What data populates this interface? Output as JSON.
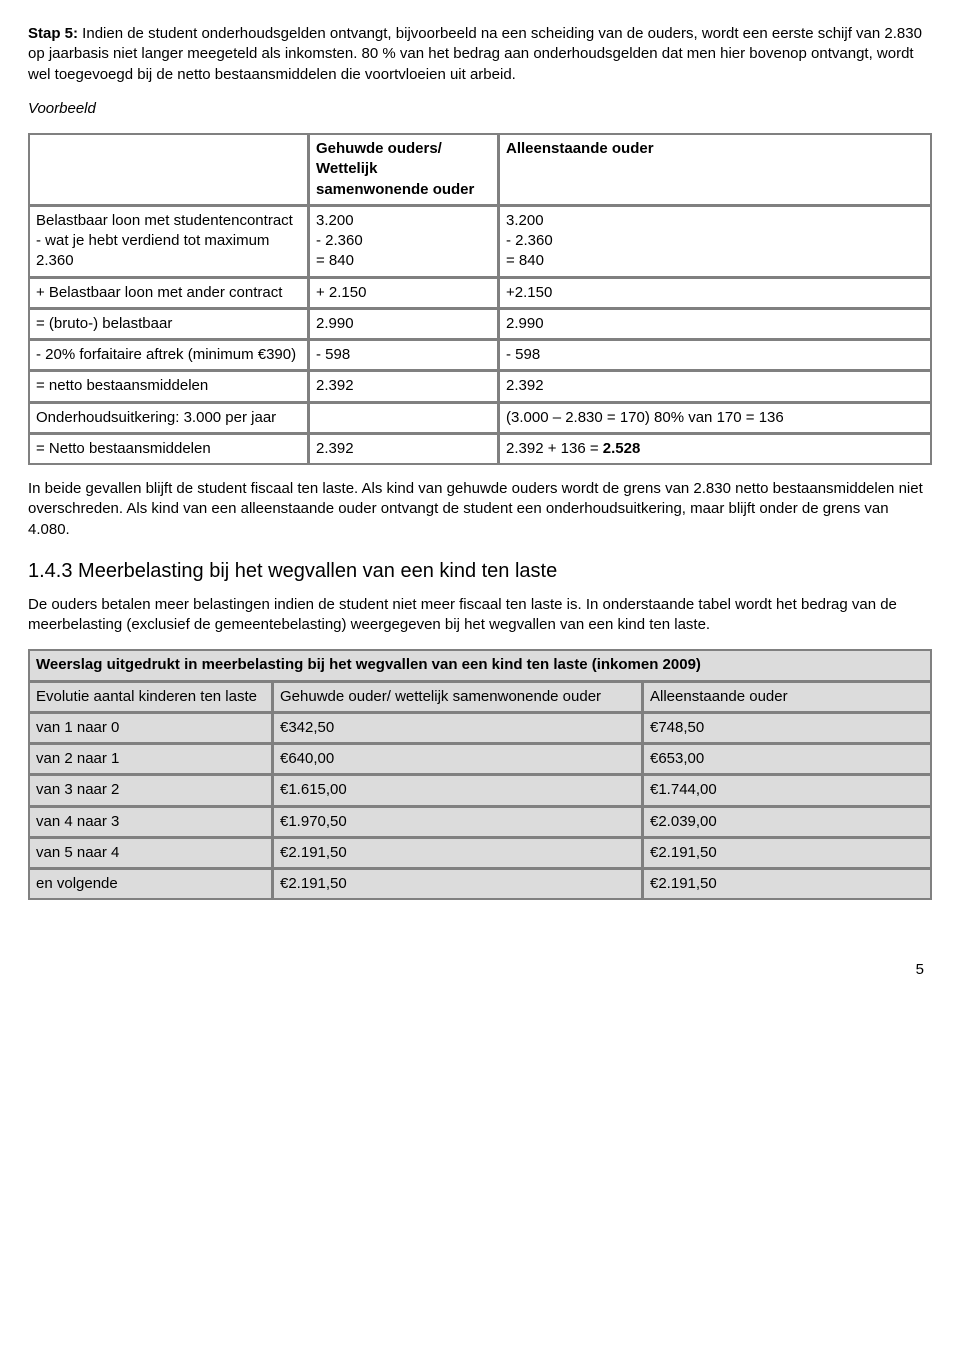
{
  "intro": {
    "step_label": "Stap 5:",
    "step_text": " Indien de student onderhoudsgelden ontvangt, bijvoorbeeld na een scheiding van de ouders, wordt een eerste schijf van 2.830 op jaarbasis niet langer meegeteld als inkomsten. 80 % van het bedrag aan onderhoudsgelden dat men hier bovenop ontvangt, wordt wel toegevoegd bij de netto bestaansmiddelen die voortvloeien uit arbeid.",
    "voorbeeld_label": "Voorbeeld"
  },
  "table1": {
    "header_col2": "Gehuwde ouders/ Wettelijk samenwonende ouder",
    "header_col3": "Alleenstaande ouder",
    "rows": [
      {
        "c1": "Belastbaar loon met studentencontract\n- wat je hebt verdiend tot maximum 2.360",
        "c2": "3.200\n- 2.360\n= 840",
        "c3": "3.200\n- 2.360\n= 840"
      },
      {
        "c1": "+ Belastbaar loon met ander contract",
        "c2": "+ 2.150",
        "c3": "+2.150"
      },
      {
        "c1": "= (bruto-) belastbaar",
        "c2": "2.990",
        "c3": "2.990"
      },
      {
        "c1": "- 20% forfaitaire aftrek (minimum €390)",
        "c2": "- 598",
        "c3": "- 598"
      },
      {
        "c1": "= netto bestaansmiddelen",
        "c2": "2.392",
        "c3": "2.392"
      },
      {
        "c1": "Onderhoudsuitkering: 3.000 per jaar",
        "c2": "",
        "c3": "(3.000 – 2.830 = 170) 80% van 170 = 136"
      },
      {
        "c1": "= Netto bestaansmiddelen",
        "c2": "2.392",
        "c3_pre": "2.392 + 136 = ",
        "c3_bold": "2.528"
      }
    ]
  },
  "middle": {
    "p1": "In beide gevallen blijft de student fiscaal ten laste. Als kind van gehuwde ouders wordt de grens van 2.830 netto bestaansmiddelen niet overschreden. Als kind van een alleenstaande ouder ontvangt de student een onderhoudsuitkering, maar blijft onder de grens van 4.080.",
    "h3": "1.4.3 Meerbelasting bij het wegvallen van een kind ten laste",
    "p2": "De ouders betalen meer belastingen indien de student niet meer fiscaal ten laste is. In onderstaande tabel wordt het bedrag van de meerbelasting (exclusief de gemeentebelasting) weergegeven bij het wegvallen van een kind ten laste."
  },
  "table2": {
    "title": "Weerslag uitgedrukt in meerbelasting bij het wegvallen van een kind ten laste (inkomen 2009)",
    "header_col1": "Evolutie aantal kinderen ten laste",
    "header_col2": "Gehuwde ouder/ wettelijk samenwonende ouder",
    "header_col3": "Alleenstaande ouder",
    "rows": [
      {
        "c1": "van 1 naar 0",
        "c2": "€342,50",
        "c3": "€748,50"
      },
      {
        "c1": "van 2 naar 1",
        "c2": "€640,00",
        "c3": "€653,00"
      },
      {
        "c1": "van 3 naar 2",
        "c2": "€1.615,00",
        "c3": "€1.744,00"
      },
      {
        "c1": "van 4 naar 3",
        "c2": "€1.970,50",
        "c3": "€2.039,00"
      },
      {
        "c1": "van 5 naar 4",
        "c2": "€2.191,50",
        "c3": "€2.191,50"
      },
      {
        "c1": "en volgende",
        "c2": "€2.191,50",
        "c3": "€2.191,50"
      }
    ]
  },
  "page_number": "5"
}
